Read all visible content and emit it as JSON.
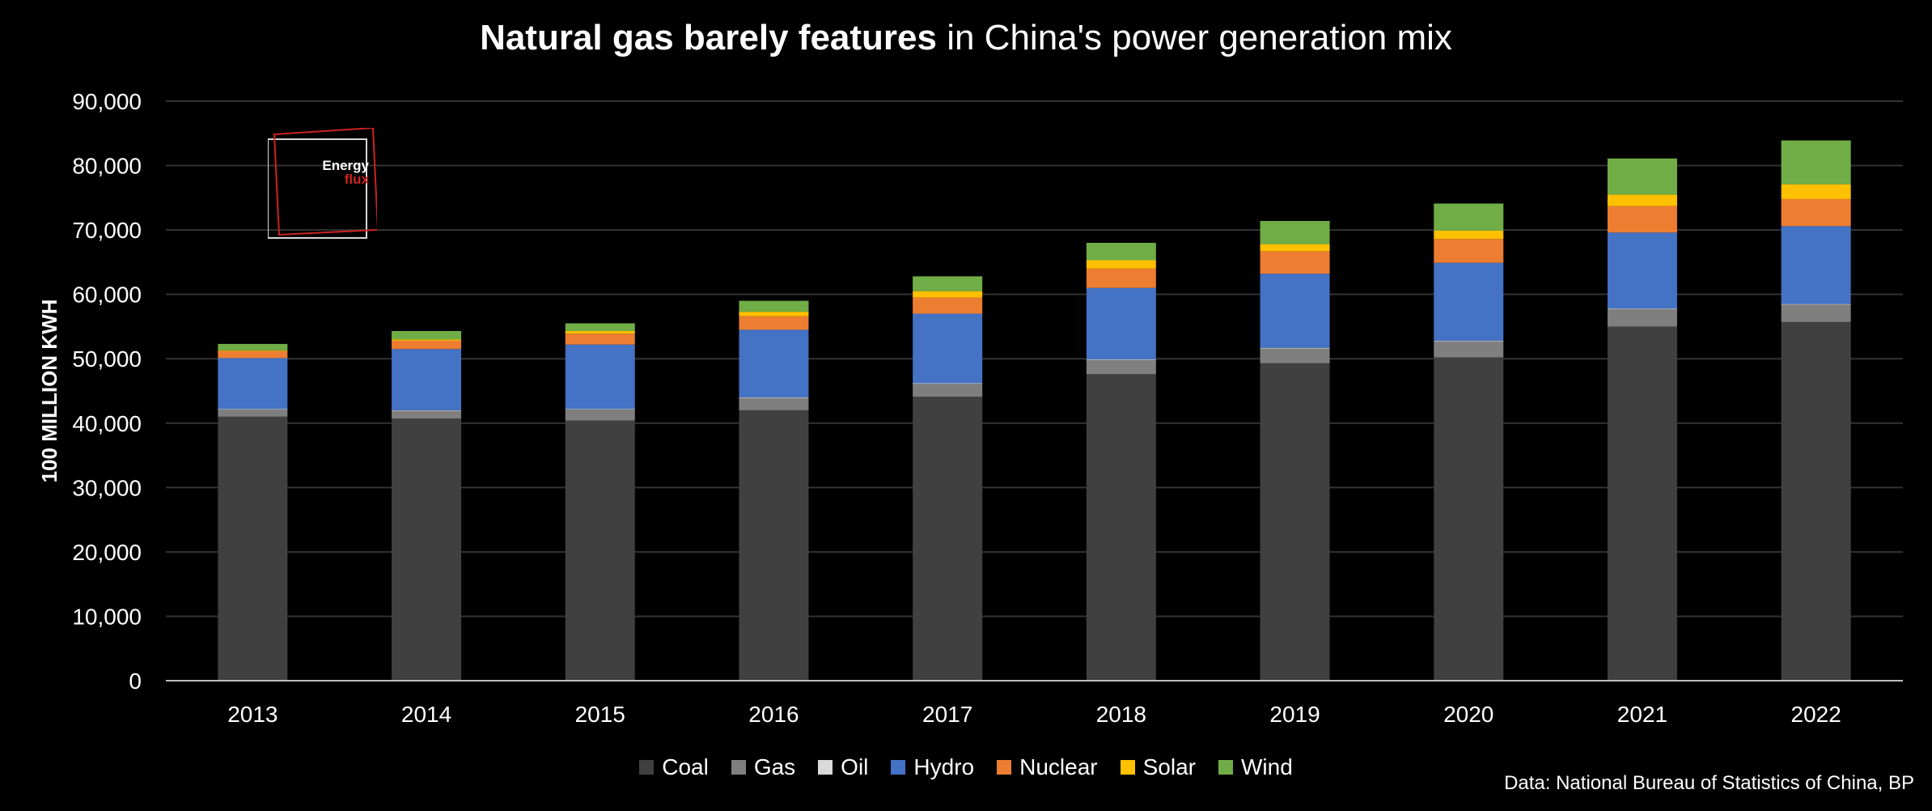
{
  "title": {
    "bold": "Natural gas barely features",
    "rest": " in China's power generation mix"
  },
  "source": "Data: National Bureau of Statistics of China, BP",
  "logo": {
    "line1": "Energy",
    "line2": "flux"
  },
  "colors": {
    "Coal": "#404040",
    "Gas": "#7f7f7f",
    "Oil": "#d9d9d9",
    "Hydro": "#4472c4",
    "Nuclear": "#ed7d31",
    "Solar": "#ffc000",
    "Wind": "#70ad47",
    "grid": "#333333",
    "axis": "#bfbfbf",
    "text": "#ffffff"
  },
  "chart_data": {
    "type": "bar",
    "stacked": true,
    "ylabel": "100 MILLION KWH",
    "ylim": [
      0,
      90000
    ],
    "yticks": [
      "0",
      "10,000",
      "20,000",
      "30,000",
      "40,000",
      "50,000",
      "60,000",
      "70,000",
      "80,000",
      "90,000"
    ],
    "grid": true,
    "legend_position": "bottom",
    "categories": [
      "2013",
      "2014",
      "2015",
      "2016",
      "2017",
      "2018",
      "2019",
      "2020",
      "2021",
      "2022"
    ],
    "series": [
      {
        "name": "Coal",
        "values": [
          41000,
          40700,
          40400,
          42000,
          44100,
          47600,
          49300,
          50200,
          55000,
          55700
        ]
      },
      {
        "name": "Gas",
        "values": [
          1100,
          1200,
          1700,
          1900,
          2000,
          2200,
          2300,
          2500,
          2700,
          2700
        ]
      },
      {
        "name": "Oil",
        "values": [
          100,
          100,
          100,
          100,
          100,
          100,
          100,
          100,
          100,
          100
        ]
      },
      {
        "name": "Hydro",
        "values": [
          7900,
          9500,
          10000,
          10500,
          10800,
          11100,
          11500,
          12100,
          11800,
          12100
        ]
      },
      {
        "name": "Nuclear",
        "values": [
          1100,
          1300,
          1700,
          2100,
          2500,
          3000,
          3500,
          3700,
          4100,
          4200
        ]
      },
      {
        "name": "Solar",
        "values": [
          100,
          200,
          400,
          700,
          1000,
          1300,
          1100,
          1300,
          1800,
          2300
        ]
      },
      {
        "name": "Wind",
        "values": [
          1000,
          1300,
          1200,
          1700,
          2300,
          2700,
          3600,
          4200,
          5600,
          6800
        ]
      }
    ]
  }
}
